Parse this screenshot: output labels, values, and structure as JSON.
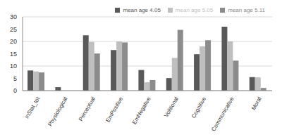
{
  "chart_data": {
    "type": "bar",
    "categories": [
      "InStat_tot",
      "Physiological",
      "Perceptual",
      "EmPositive",
      "EmNegative",
      "Volitional",
      "Cognitive",
      "Communicative",
      "Moral"
    ],
    "series": [
      {
        "name": "mean age 4.05",
        "color": "#595959",
        "values": [
          8.2,
          1.4,
          22.5,
          16.5,
          8.4,
          5.1,
          14.8,
          26,
          5.5
        ]
      },
      {
        "name": "mean age 5.05",
        "color": "#bfbfbf",
        "values": [
          7.8,
          0,
          19.8,
          20,
          3.4,
          13.3,
          18,
          20,
          5.4
        ]
      },
      {
        "name": "mean age 5.11",
        "color": "#8c8c8c",
        "values": [
          7.4,
          0,
          15.1,
          19.6,
          4.3,
          24.7,
          20.5,
          12.2,
          1.1
        ]
      }
    ],
    "ylim": [
      0,
      30
    ],
    "yticks": [
      0,
      5,
      10,
      15,
      20,
      25,
      30
    ],
    "grid": true,
    "legend": "top-right"
  }
}
